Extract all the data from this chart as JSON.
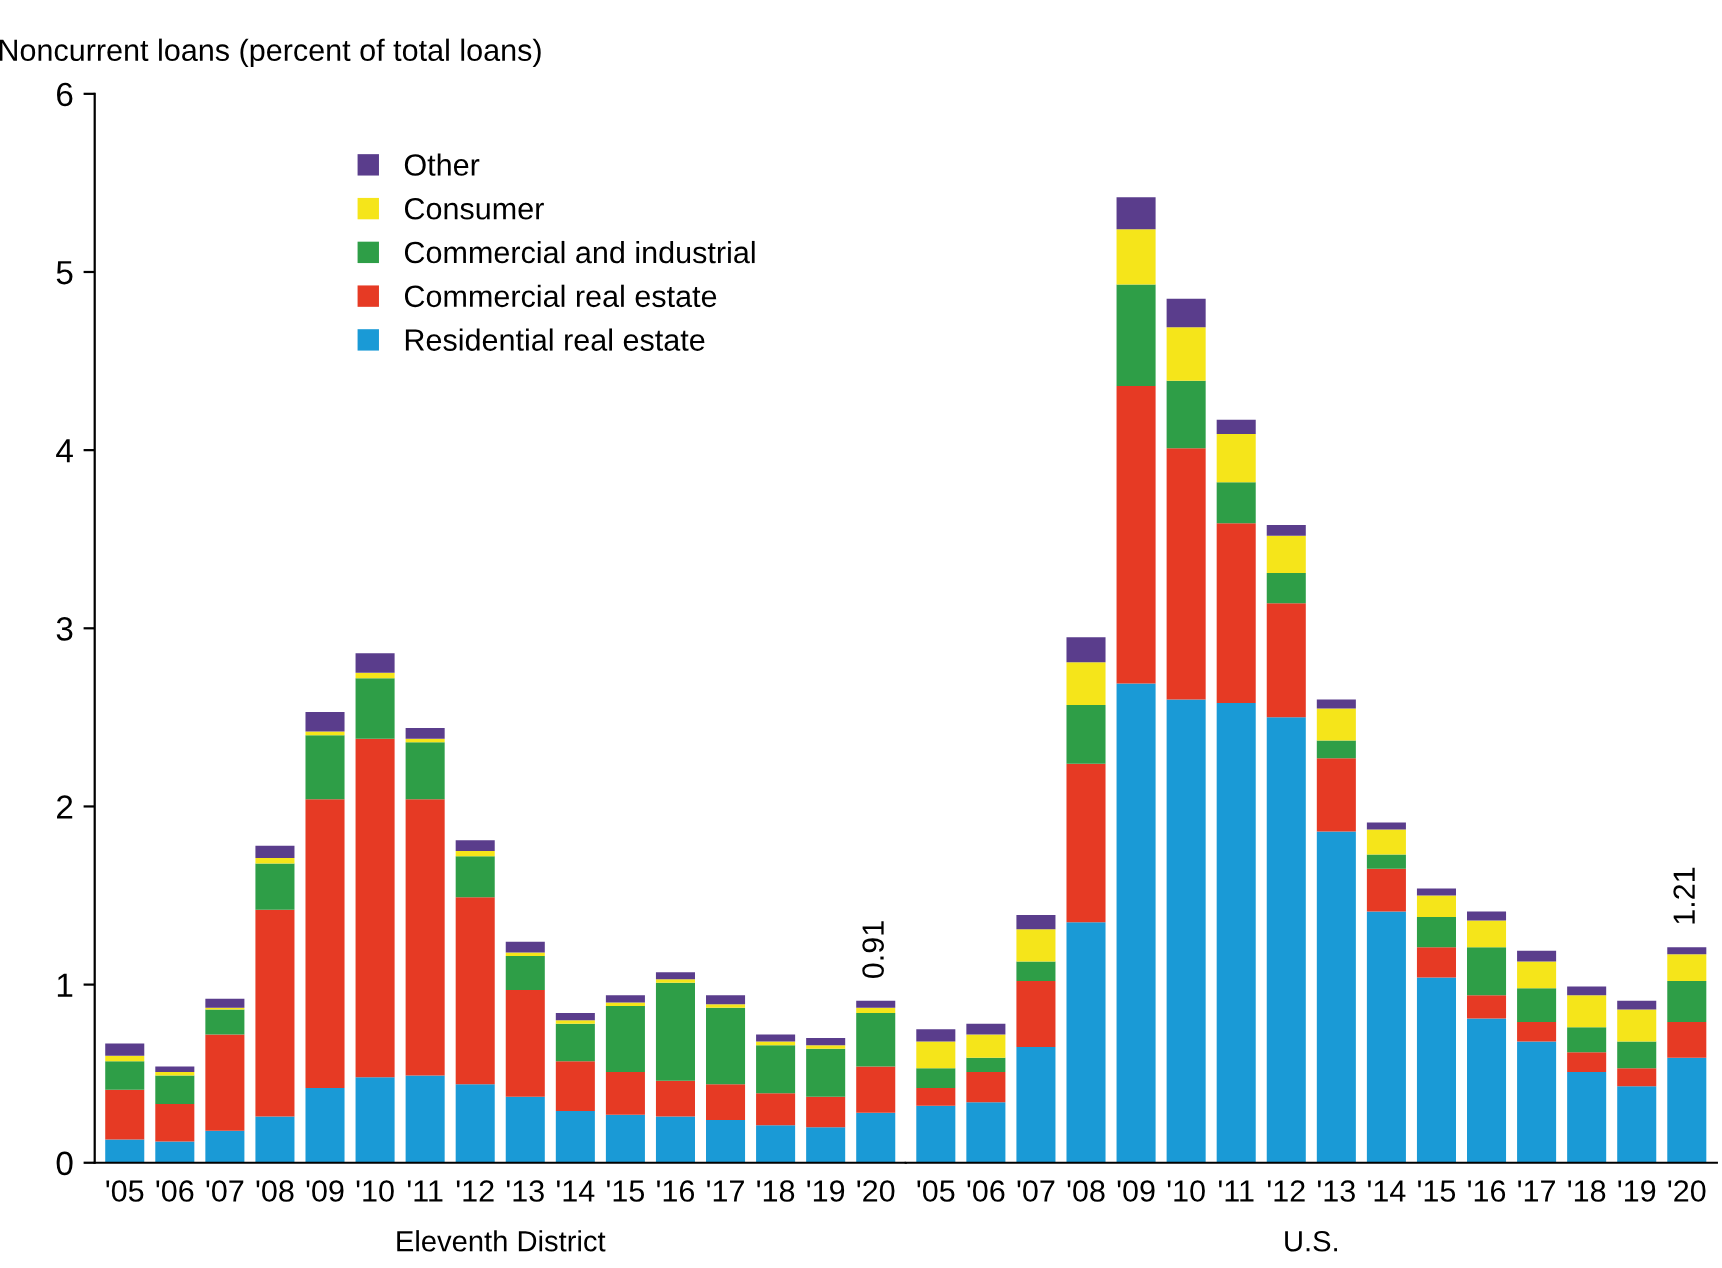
{
  "chart_data": [
    {
      "type": "bar",
      "stacked": true,
      "xlabel": "Eleventh District",
      "ylabel": "Noncurrent loans (percent of total loans)",
      "categories": [
        "'05",
        "'06",
        "'07",
        "'08",
        "'09",
        "'10",
        "'11",
        "'12",
        "'13",
        "'14",
        "'15",
        "'16",
        "'17",
        "'18",
        "'19",
        "'20"
      ],
      "ylim": [
        0,
        6
      ],
      "yticks": [
        0,
        1,
        2,
        3,
        4,
        5,
        6
      ],
      "grid": false,
      "legend": "top right",
      "totals": [
        null,
        null,
        null,
        null,
        null,
        null,
        null,
        null,
        null,
        null,
        null,
        null,
        null,
        null,
        null,
        "0.91"
      ],
      "series": [
        {
          "name": "Residential real estate",
          "color": "#1a9ad6",
          "values": [
            0.13,
            0.12,
            0.18,
            0.26,
            0.42,
            0.48,
            0.49,
            0.44,
            0.37,
            0.29,
            0.27,
            0.26,
            0.24,
            0.21,
            0.2,
            0.28
          ]
        },
        {
          "name": "Commercial real estate",
          "color": "#e63a24",
          "values": [
            0.28,
            0.21,
            0.54,
            1.16,
            1.62,
            1.9,
            1.55,
            1.05,
            0.6,
            0.28,
            0.24,
            0.2,
            0.2,
            0.18,
            0.17,
            0.26
          ]
        },
        {
          "name": "Commercial and industrial",
          "color": "#2e9e47",
          "values": [
            0.16,
            0.16,
            0.14,
            0.26,
            0.36,
            0.34,
            0.32,
            0.23,
            0.19,
            0.21,
            0.37,
            0.55,
            0.43,
            0.27,
            0.27,
            0.3
          ]
        },
        {
          "name": "Consumer",
          "color": "#f5e51a",
          "values": [
            0.03,
            0.02,
            0.01,
            0.03,
            0.02,
            0.03,
            0.02,
            0.03,
            0.02,
            0.02,
            0.02,
            0.02,
            0.02,
            0.02,
            0.02,
            0.03
          ]
        },
        {
          "name": "Other",
          "color": "#5a3d8c",
          "values": [
            0.07,
            0.03,
            0.05,
            0.07,
            0.11,
            0.11,
            0.06,
            0.06,
            0.06,
            0.04,
            0.04,
            0.04,
            0.05,
            0.04,
            0.04,
            0.04
          ]
        }
      ]
    },
    {
      "type": "bar",
      "stacked": true,
      "xlabel": "U.S.",
      "categories": [
        "'05",
        "'06",
        "'07",
        "'08",
        "'09",
        "'10",
        "'11",
        "'12",
        "'13",
        "'14",
        "'15",
        "'16",
        "'17",
        "'18",
        "'19",
        "'20"
      ],
      "ylim": [
        0,
        6
      ],
      "tick_labels": "x",
      "grid": false,
      "totals": [
        null,
        null,
        null,
        null,
        null,
        null,
        null,
        null,
        null,
        null,
        null,
        null,
        null,
        null,
        null,
        "1.21"
      ],
      "series": [
        {
          "color": "#1a9ad6",
          "values": [
            0.32,
            0.34,
            0.65,
            1.35,
            2.69,
            2.6,
            2.58,
            2.5,
            1.86,
            1.41,
            1.04,
            0.81,
            0.68,
            0.51,
            0.43,
            0.59
          ]
        },
        {
          "color": "#e63a24",
          "values": [
            0.1,
            0.17,
            0.37,
            0.89,
            1.67,
            1.41,
            1.01,
            0.64,
            0.41,
            0.24,
            0.17,
            0.13,
            0.11,
            0.11,
            0.1,
            0.2
          ]
        },
        {
          "color": "#2e9e47",
          "values": [
            0.11,
            0.08,
            0.11,
            0.33,
            0.57,
            0.38,
            0.23,
            0.17,
            0.1,
            0.08,
            0.17,
            0.27,
            0.19,
            0.14,
            0.15,
            0.23
          ]
        },
        {
          "color": "#f5e51a",
          "values": [
            0.15,
            0.13,
            0.18,
            0.24,
            0.31,
            0.3,
            0.27,
            0.21,
            0.18,
            0.14,
            0.12,
            0.15,
            0.15,
            0.18,
            0.18,
            0.15
          ]
        },
        {
          "color": "#5a3d8c",
          "values": [
            0.07,
            0.06,
            0.08,
            0.14,
            0.18,
            0.16,
            0.08,
            0.06,
            0.05,
            0.04,
            0.04,
            0.05,
            0.06,
            0.05,
            0.05,
            0.04
          ]
        }
      ]
    }
  ]
}
